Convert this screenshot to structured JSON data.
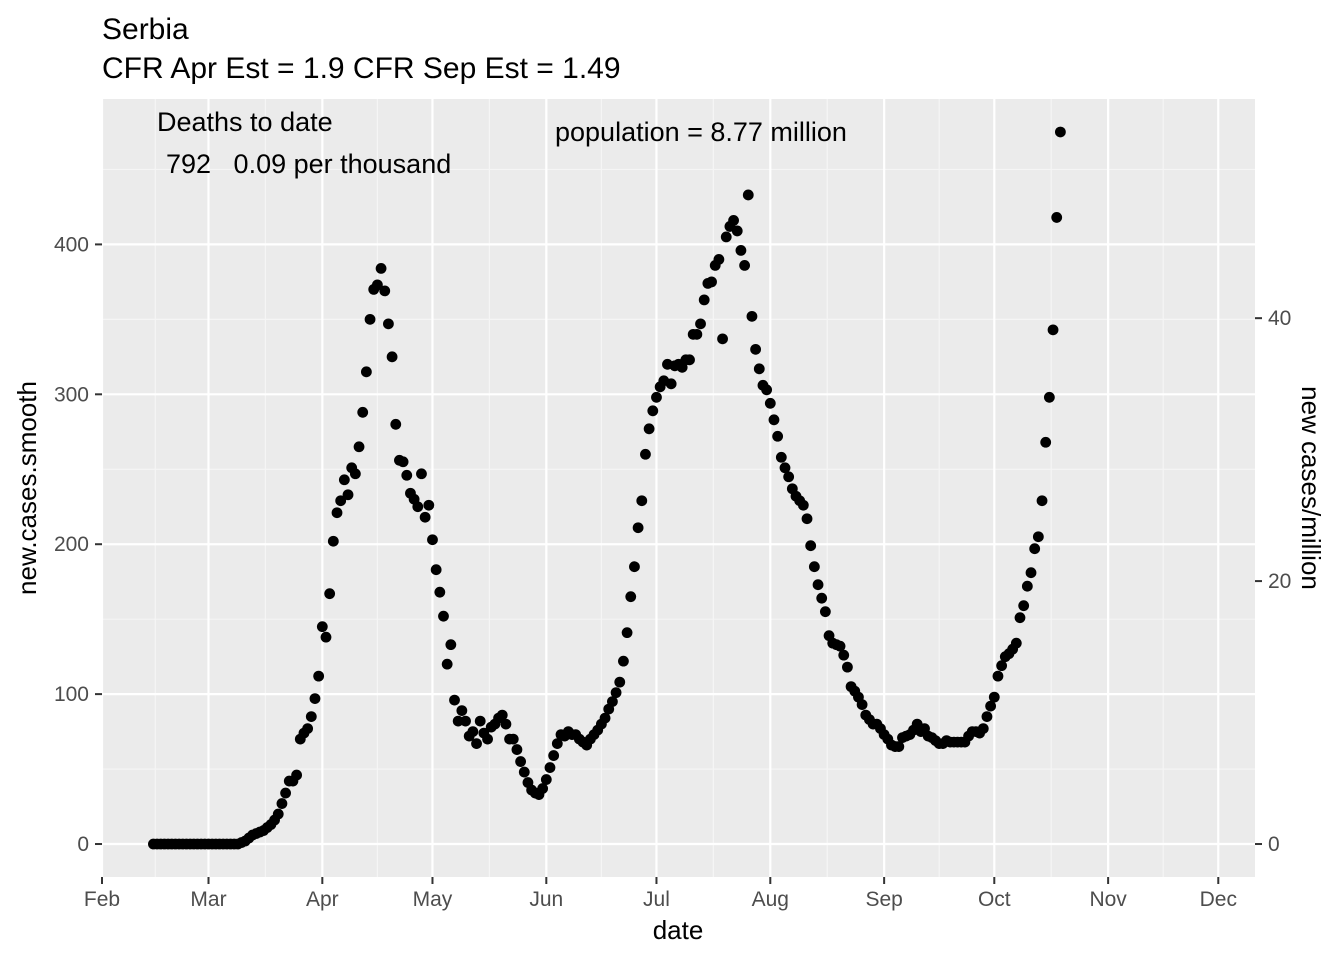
{
  "chart_data": {
    "type": "scatter",
    "title": "Serbia",
    "subtitle": "CFR Apr Est = 1.9   CFR Sep Est = 1.49",
    "xlabel": "date",
    "ylabel": "new.cases.smooth",
    "y2label": "new cases/million",
    "x_ticks": [
      "Feb",
      "Mar",
      "Apr",
      "May",
      "Jun",
      "Jul",
      "Aug",
      "Sep",
      "Oct",
      "Nov",
      "Dec"
    ],
    "y_ticks": [
      "0",
      "100",
      "200",
      "300",
      "400"
    ],
    "y2_ticks": [
      "0",
      "20",
      "40"
    ],
    "xlim": [
      "2020-02-01",
      "2020-12-11"
    ],
    "ylim": [
      -22,
      497
    ],
    "y2_scale_per_million": 8.77,
    "grid": true,
    "legend": "none",
    "point_color": "#000000",
    "panel_color": "#ebebeb",
    "annotations": {
      "deaths_heading": "Deaths to date",
      "deaths_values": "792   0.09 per thousand",
      "population": "population = 8.77 million"
    },
    "points": [
      [
        "2020-02-15",
        0
      ],
      [
        "2020-02-16",
        0
      ],
      [
        "2020-02-17",
        0
      ],
      [
        "2020-02-18",
        0
      ],
      [
        "2020-02-19",
        0
      ],
      [
        "2020-02-20",
        0
      ],
      [
        "2020-02-21",
        0
      ],
      [
        "2020-02-22",
        0
      ],
      [
        "2020-02-23",
        0
      ],
      [
        "2020-02-24",
        0
      ],
      [
        "2020-02-25",
        0
      ],
      [
        "2020-02-26",
        0
      ],
      [
        "2020-02-27",
        0
      ],
      [
        "2020-02-28",
        0
      ],
      [
        "2020-02-29",
        0
      ],
      [
        "2020-03-01",
        0
      ],
      [
        "2020-03-02",
        0
      ],
      [
        "2020-03-03",
        0
      ],
      [
        "2020-03-04",
        0
      ],
      [
        "2020-03-05",
        0
      ],
      [
        "2020-03-06",
        0
      ],
      [
        "2020-03-07",
        0
      ],
      [
        "2020-03-08",
        0
      ],
      [
        "2020-03-09",
        0
      ],
      [
        "2020-03-10",
        1
      ],
      [
        "2020-03-11",
        2
      ],
      [
        "2020-03-12",
        4
      ],
      [
        "2020-03-13",
        6
      ],
      [
        "2020-03-14",
        7
      ],
      [
        "2020-03-15",
        8
      ],
      [
        "2020-03-16",
        9
      ],
      [
        "2020-03-17",
        11
      ],
      [
        "2020-03-18",
        13
      ],
      [
        "2020-03-19",
        16
      ],
      [
        "2020-03-20",
        20
      ],
      [
        "2020-03-21",
        27
      ],
      [
        "2020-03-22",
        34
      ],
      [
        "2020-03-23",
        42
      ],
      [
        "2020-03-24",
        42
      ],
      [
        "2020-03-25",
        46
      ],
      [
        "2020-03-26",
        70
      ],
      [
        "2020-03-27",
        74
      ],
      [
        "2020-03-28",
        77
      ],
      [
        "2020-03-29",
        85
      ],
      [
        "2020-03-30",
        97
      ],
      [
        "2020-03-31",
        112
      ],
      [
        "2020-04-01",
        145
      ],
      [
        "2020-04-02",
        138
      ],
      [
        "2020-04-03",
        167
      ],
      [
        "2020-04-04",
        202
      ],
      [
        "2020-04-05",
        221
      ],
      [
        "2020-04-06",
        229
      ],
      [
        "2020-04-07",
        243
      ],
      [
        "2020-04-08",
        233
      ],
      [
        "2020-04-09",
        251
      ],
      [
        "2020-04-10",
        247
      ],
      [
        "2020-04-11",
        265
      ],
      [
        "2020-04-12",
        288
      ],
      [
        "2020-04-13",
        315
      ],
      [
        "2020-04-14",
        350
      ],
      [
        "2020-04-15",
        370
      ],
      [
        "2020-04-16",
        373
      ],
      [
        "2020-04-17",
        384
      ],
      [
        "2020-04-18",
        369
      ],
      [
        "2020-04-19",
        347
      ],
      [
        "2020-04-20",
        325
      ],
      [
        "2020-04-21",
        280
      ],
      [
        "2020-04-22",
        256
      ],
      [
        "2020-04-23",
        255
      ],
      [
        "2020-04-24",
        246
      ],
      [
        "2020-04-25",
        234
      ],
      [
        "2020-04-26",
        230
      ],
      [
        "2020-04-27",
        225
      ],
      [
        "2020-04-28",
        247
      ],
      [
        "2020-04-29",
        218
      ],
      [
        "2020-04-30",
        226
      ],
      [
        "2020-05-01",
        203
      ],
      [
        "2020-05-02",
        183
      ],
      [
        "2020-05-03",
        168
      ],
      [
        "2020-05-04",
        152
      ],
      [
        "2020-05-05",
        120
      ],
      [
        "2020-05-06",
        133
      ],
      [
        "2020-05-07",
        96
      ],
      [
        "2020-05-08",
        82
      ],
      [
        "2020-05-09",
        89
      ],
      [
        "2020-05-10",
        82
      ],
      [
        "2020-05-11",
        72
      ],
      [
        "2020-05-12",
        75
      ],
      [
        "2020-05-13",
        67
      ],
      [
        "2020-05-14",
        82
      ],
      [
        "2020-05-15",
        74
      ],
      [
        "2020-05-16",
        70
      ],
      [
        "2020-05-17",
        78
      ],
      [
        "2020-05-18",
        80
      ],
      [
        "2020-05-19",
        84
      ],
      [
        "2020-05-20",
        86
      ],
      [
        "2020-05-21",
        80
      ],
      [
        "2020-05-22",
        70
      ],
      [
        "2020-05-23",
        70
      ],
      [
        "2020-05-24",
        63
      ],
      [
        "2020-05-25",
        55
      ],
      [
        "2020-05-26",
        48
      ],
      [
        "2020-05-27",
        41
      ],
      [
        "2020-05-28",
        36
      ],
      [
        "2020-05-29",
        34
      ],
      [
        "2020-05-30",
        33
      ],
      [
        "2020-05-31",
        37
      ],
      [
        "2020-06-01",
        43
      ],
      [
        "2020-06-02",
        51
      ],
      [
        "2020-06-03",
        59
      ],
      [
        "2020-06-04",
        67
      ],
      [
        "2020-06-05",
        73
      ],
      [
        "2020-06-06",
        72
      ],
      [
        "2020-06-07",
        75
      ],
      [
        "2020-06-08",
        73
      ],
      [
        "2020-06-09",
        73
      ],
      [
        "2020-06-10",
        70
      ],
      [
        "2020-06-11",
        68
      ],
      [
        "2020-06-12",
        66
      ],
      [
        "2020-06-13",
        70
      ],
      [
        "2020-06-14",
        73
      ],
      [
        "2020-06-15",
        76
      ],
      [
        "2020-06-16",
        80
      ],
      [
        "2020-06-17",
        84
      ],
      [
        "2020-06-18",
        90
      ],
      [
        "2020-06-19",
        95
      ],
      [
        "2020-06-20",
        101
      ],
      [
        "2020-06-21",
        108
      ],
      [
        "2020-06-22",
        122
      ],
      [
        "2020-06-23",
        141
      ],
      [
        "2020-06-24",
        165
      ],
      [
        "2020-06-25",
        185
      ],
      [
        "2020-06-26",
        211
      ],
      [
        "2020-06-27",
        229
      ],
      [
        "2020-06-28",
        260
      ],
      [
        "2020-06-29",
        277
      ],
      [
        "2020-06-30",
        289
      ],
      [
        "2020-07-01",
        298
      ],
      [
        "2020-07-02",
        305
      ],
      [
        "2020-07-03",
        309
      ],
      [
        "2020-07-04",
        320
      ],
      [
        "2020-07-05",
        307
      ],
      [
        "2020-07-06",
        319
      ],
      [
        "2020-07-07",
        320
      ],
      [
        "2020-07-08",
        318
      ],
      [
        "2020-07-09",
        323
      ],
      [
        "2020-07-10",
        323
      ],
      [
        "2020-07-11",
        340
      ],
      [
        "2020-07-12",
        340
      ],
      [
        "2020-07-13",
        347
      ],
      [
        "2020-07-14",
        363
      ],
      [
        "2020-07-15",
        374
      ],
      [
        "2020-07-16",
        375
      ],
      [
        "2020-07-17",
        386
      ],
      [
        "2020-07-18",
        390
      ],
      [
        "2020-07-19",
        337
      ],
      [
        "2020-07-20",
        405
      ],
      [
        "2020-07-21",
        412
      ],
      [
        "2020-07-22",
        416
      ],
      [
        "2020-07-23",
        409
      ],
      [
        "2020-07-24",
        396
      ],
      [
        "2020-07-25",
        386
      ],
      [
        "2020-07-26",
        433
      ],
      [
        "2020-07-27",
        352
      ],
      [
        "2020-07-28",
        330
      ],
      [
        "2020-07-29",
        317
      ],
      [
        "2020-07-30",
        306
      ],
      [
        "2020-07-31",
        303
      ],
      [
        "2020-08-01",
        294
      ],
      [
        "2020-08-02",
        283
      ],
      [
        "2020-08-03",
        272
      ],
      [
        "2020-08-04",
        258
      ],
      [
        "2020-08-05",
        251
      ],
      [
        "2020-08-06",
        245
      ],
      [
        "2020-08-07",
        237
      ],
      [
        "2020-08-08",
        232
      ],
      [
        "2020-08-09",
        229
      ],
      [
        "2020-08-10",
        226
      ],
      [
        "2020-08-11",
        217
      ],
      [
        "2020-08-12",
        199
      ],
      [
        "2020-08-13",
        185
      ],
      [
        "2020-08-14",
        173
      ],
      [
        "2020-08-15",
        164
      ],
      [
        "2020-08-16",
        155
      ],
      [
        "2020-08-17",
        139
      ],
      [
        "2020-08-18",
        134
      ],
      [
        "2020-08-19",
        133
      ],
      [
        "2020-08-20",
        132
      ],
      [
        "2020-08-21",
        126
      ],
      [
        "2020-08-22",
        118
      ],
      [
        "2020-08-23",
        105
      ],
      [
        "2020-08-24",
        102
      ],
      [
        "2020-08-25",
        98
      ],
      [
        "2020-08-26",
        93
      ],
      [
        "2020-08-27",
        86
      ],
      [
        "2020-08-28",
        83
      ],
      [
        "2020-08-29",
        80
      ],
      [
        "2020-08-30",
        80
      ],
      [
        "2020-08-31",
        77
      ],
      [
        "2020-09-01",
        73
      ],
      [
        "2020-09-02",
        70
      ],
      [
        "2020-09-03",
        66
      ],
      [
        "2020-09-04",
        65
      ],
      [
        "2020-09-05",
        65
      ],
      [
        "2020-09-06",
        71
      ],
      [
        "2020-09-07",
        72
      ],
      [
        "2020-09-08",
        73
      ],
      [
        "2020-09-09",
        76
      ],
      [
        "2020-09-10",
        80
      ],
      [
        "2020-09-11",
        75
      ],
      [
        "2020-09-12",
        77
      ],
      [
        "2020-09-13",
        72
      ],
      [
        "2020-09-14",
        71
      ],
      [
        "2020-09-15",
        69
      ],
      [
        "2020-09-16",
        67
      ],
      [
        "2020-09-17",
        67
      ],
      [
        "2020-09-18",
        69
      ],
      [
        "2020-09-19",
        68
      ],
      [
        "2020-09-20",
        68
      ],
      [
        "2020-09-21",
        68
      ],
      [
        "2020-09-22",
        68
      ],
      [
        "2020-09-23",
        68
      ],
      [
        "2020-09-24",
        72
      ],
      [
        "2020-09-25",
        75
      ],
      [
        "2020-09-26",
        75
      ],
      [
        "2020-09-27",
        74
      ],
      [
        "2020-09-28",
        77
      ],
      [
        "2020-09-29",
        85
      ],
      [
        "2020-09-30",
        92
      ],
      [
        "2020-10-01",
        98
      ],
      [
        "2020-10-02",
        112
      ],
      [
        "2020-10-03",
        119
      ],
      [
        "2020-10-04",
        125
      ],
      [
        "2020-10-05",
        127
      ],
      [
        "2020-10-06",
        130
      ],
      [
        "2020-10-07",
        134
      ],
      [
        "2020-10-08",
        151
      ],
      [
        "2020-10-09",
        159
      ],
      [
        "2020-10-10",
        172
      ],
      [
        "2020-10-11",
        181
      ],
      [
        "2020-10-12",
        197
      ],
      [
        "2020-10-13",
        205
      ],
      [
        "2020-10-14",
        229
      ],
      [
        "2020-10-15",
        268
      ],
      [
        "2020-10-16",
        298
      ],
      [
        "2020-10-17",
        343
      ],
      [
        "2020-10-18",
        418
      ],
      [
        "2020-10-19",
        475
      ]
    ]
  }
}
